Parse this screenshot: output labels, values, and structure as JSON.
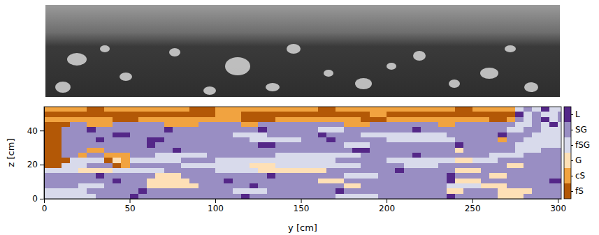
{
  "chart_data": {
    "type": "heatmap",
    "x_label": "y [cm]",
    "y_label": "z [cm]",
    "xlim": [
      0,
      302
    ],
    "ylim": [
      0,
      54
    ],
    "xticks": [
      0,
      50,
      100,
      150,
      200,
      250,
      300
    ],
    "yticks": [
      0,
      20,
      40
    ],
    "x_edges": [
      0,
      5,
      10,
      15,
      20,
      25,
      30,
      35,
      40,
      45,
      50,
      55,
      60,
      65,
      70,
      75,
      80,
      85,
      90,
      95,
      100,
      105,
      110,
      115,
      120,
      125,
      130,
      135,
      140,
      145,
      150,
      155,
      160,
      165,
      170,
      175,
      180,
      185,
      190,
      195,
      200,
      205,
      210,
      215,
      220,
      225,
      230,
      235,
      240,
      245,
      250,
      255,
      260,
      265,
      270,
      275,
      280,
      285,
      290,
      295,
      300,
      305
    ],
    "y_edges": [
      54,
      51,
      48,
      45,
      42,
      39,
      36,
      33,
      30,
      27,
      24,
      21,
      18,
      15,
      12,
      9,
      6,
      3,
      0
    ],
    "cells": [
      [
        1,
        1,
        1,
        1,
        1,
        0,
        0,
        1,
        1,
        1,
        1,
        1,
        1,
        1,
        1,
        1,
        1,
        0,
        0,
        0,
        1,
        1,
        1,
        1,
        1,
        1,
        1,
        1,
        1,
        1,
        1,
        1,
        0,
        0,
        1,
        1,
        1,
        1,
        1,
        1,
        1,
        1,
        1,
        1,
        1,
        1,
        1,
        1,
        0,
        0,
        1,
        1,
        1,
        1,
        1,
        3,
        4,
        3,
        5,
        3,
        3
      ],
      [
        0,
        0,
        0,
        0,
        0,
        0,
        0,
        0,
        0,
        0,
        0,
        0,
        0,
        0,
        0,
        0,
        0,
        0,
        0,
        0,
        1,
        1,
        1,
        0,
        0,
        0,
        0,
        0,
        0,
        0,
        0,
        0,
        0,
        0,
        0,
        0,
        0,
        0,
        1,
        1,
        0,
        0,
        0,
        0,
        0,
        0,
        0,
        0,
        0,
        0,
        0,
        0,
        0,
        0,
        0,
        5,
        3,
        4,
        3,
        3,
        4
      ],
      [
        1,
        1,
        1,
        1,
        1,
        1,
        1,
        1,
        0,
        0,
        0,
        1,
        1,
        1,
        1,
        1,
        1,
        1,
        1,
        1,
        1,
        1,
        1,
        0,
        0,
        0,
        0,
        1,
        1,
        1,
        1,
        1,
        1,
        1,
        1,
        1,
        1,
        0,
        0,
        0,
        1,
        1,
        1,
        1,
        1,
        1,
        1,
        1,
        1,
        1,
        1,
        1,
        0,
        0,
        1,
        4,
        3,
        4,
        5,
        3,
        4
      ],
      [
        0,
        0,
        0,
        4,
        4,
        1,
        1,
        1,
        4,
        4,
        4,
        4,
        4,
        4,
        1,
        1,
        1,
        1,
        4,
        4,
        4,
        4,
        4,
        1,
        1,
        4,
        4,
        4,
        4,
        4,
        4,
        4,
        4,
        4,
        4,
        1,
        1,
        1,
        4,
        4,
        4,
        4,
        4,
        4,
        4,
        4,
        1,
        1,
        4,
        4,
        4,
        4,
        4,
        4,
        4,
        3,
        3,
        4,
        3,
        5,
        3
      ],
      [
        0,
        0,
        4,
        4,
        4,
        5,
        4,
        4,
        4,
        4,
        4,
        4,
        4,
        4,
        5,
        4,
        4,
        4,
        4,
        4,
        4,
        4,
        4,
        4,
        4,
        5,
        4,
        4,
        4,
        4,
        4,
        4,
        3,
        3,
        3,
        4,
        4,
        4,
        4,
        4,
        4,
        4,
        4,
        5,
        4,
        4,
        4,
        4,
        4,
        4,
        4,
        4,
        4,
        4,
        3,
        3,
        4,
        4,
        3,
        3,
        3
      ],
      [
        0,
        0,
        4,
        4,
        4,
        4,
        4,
        4,
        5,
        5,
        4,
        4,
        4,
        4,
        4,
        4,
        4,
        4,
        4,
        4,
        4,
        4,
        3,
        3,
        3,
        3,
        4,
        4,
        4,
        4,
        4,
        4,
        5,
        4,
        4,
        4,
        4,
        3,
        3,
        3,
        3,
        3,
        3,
        3,
        3,
        3,
        3,
        4,
        4,
        4,
        4,
        4,
        4,
        5,
        4,
        4,
        4,
        3,
        3,
        3,
        3
      ],
      [
        0,
        0,
        4,
        4,
        4,
        4,
        5,
        4,
        4,
        4,
        4,
        4,
        5,
        5,
        4,
        4,
        4,
        4,
        4,
        4,
        4,
        4,
        4,
        4,
        3,
        3,
        3,
        3,
        3,
        3,
        4,
        4,
        4,
        5,
        4,
        4,
        4,
        4,
        4,
        4,
        3,
        3,
        3,
        3,
        3,
        3,
        3,
        3,
        4,
        4,
        4,
        4,
        4,
        1,
        4,
        4,
        3,
        3,
        3,
        3,
        3
      ],
      [
        0,
        0,
        4,
        4,
        4,
        4,
        4,
        4,
        4,
        4,
        4,
        4,
        5,
        4,
        4,
        4,
        4,
        4,
        4,
        4,
        4,
        4,
        4,
        4,
        4,
        5,
        5,
        4,
        4,
        4,
        4,
        4,
        4,
        4,
        4,
        3,
        3,
        3,
        4,
        4,
        4,
        4,
        4,
        4,
        4,
        4,
        4,
        4,
        5,
        4,
        4,
        4,
        4,
        4,
        4,
        3,
        3,
        3,
        3,
        3,
        3
      ],
      [
        0,
        0,
        4,
        4,
        4,
        1,
        1,
        4,
        4,
        4,
        4,
        4,
        4,
        4,
        4,
        5,
        4,
        4,
        4,
        4,
        4,
        4,
        4,
        4,
        4,
        4,
        4,
        4,
        4,
        4,
        4,
        4,
        4,
        4,
        4,
        4,
        5,
        5,
        4,
        4,
        4,
        4,
        4,
        4,
        4,
        4,
        4,
        4,
        2,
        4,
        4,
        4,
        4,
        4,
        4,
        3,
        3,
        3,
        4,
        4,
        4
      ],
      [
        0,
        0,
        4,
        4,
        1,
        4,
        4,
        1,
        1,
        1,
        4,
        4,
        4,
        3,
        3,
        3,
        3,
        3,
        3,
        4,
        4,
        4,
        4,
        4,
        4,
        4,
        4,
        3,
        3,
        3,
        3,
        3,
        3,
        3,
        3,
        3,
        3,
        4,
        4,
        4,
        4,
        4,
        4,
        5,
        4,
        4,
        4,
        4,
        4,
        4,
        4,
        4,
        3,
        3,
        3,
        3,
        4,
        4,
        4,
        4,
        4
      ],
      [
        0,
        0,
        0,
        3,
        3,
        3,
        3,
        0,
        2,
        1,
        3,
        3,
        3,
        3,
        3,
        3,
        4,
        4,
        4,
        4,
        3,
        3,
        3,
        3,
        3,
        3,
        3,
        3,
        3,
        3,
        3,
        3,
        3,
        3,
        4,
        4,
        4,
        4,
        4,
        4,
        3,
        3,
        3,
        3,
        3,
        3,
        3,
        3,
        2,
        2,
        3,
        3,
        3,
        4,
        4,
        4,
        4,
        4,
        4,
        4,
        4
      ],
      [
        0,
        0,
        3,
        3,
        3,
        4,
        4,
        4,
        0,
        1,
        4,
        4,
        4,
        4,
        4,
        4,
        3,
        3,
        3,
        3,
        3,
        3,
        3,
        3,
        2,
        2,
        2,
        3,
        3,
        3,
        3,
        3,
        3,
        3,
        3,
        3,
        3,
        4,
        4,
        4,
        4,
        4,
        3,
        3,
        3,
        3,
        4,
        4,
        4,
        4,
        4,
        4,
        4,
        4,
        2,
        2,
        4,
        4,
        4,
        4,
        4
      ],
      [
        3,
        3,
        3,
        3,
        2,
        2,
        2,
        2,
        3,
        3,
        3,
        3,
        3,
        3,
        4,
        4,
        4,
        4,
        4,
        4,
        3,
        3,
        3,
        3,
        3,
        2,
        2,
        2,
        2,
        2,
        2,
        2,
        2,
        4,
        4,
        4,
        4,
        4,
        4,
        4,
        4,
        5,
        4,
        4,
        4,
        4,
        4,
        4,
        2,
        2,
        2,
        4,
        4,
        4,
        4,
        4,
        4,
        4,
        4,
        4,
        4
      ],
      [
        4,
        4,
        4,
        4,
        4,
        4,
        5,
        4,
        4,
        4,
        4,
        4,
        4,
        2,
        2,
        2,
        4,
        4,
        4,
        4,
        4,
        4,
        4,
        4,
        4,
        4,
        5,
        4,
        4,
        4,
        4,
        4,
        4,
        4,
        4,
        3,
        3,
        3,
        3,
        4,
        4,
        4,
        4,
        4,
        4,
        4,
        4,
        5,
        4,
        4,
        4,
        4,
        2,
        2,
        4,
        4,
        4,
        4,
        4,
        4,
        4
      ],
      [
        4,
        4,
        4,
        4,
        4,
        4,
        4,
        4,
        5,
        4,
        4,
        4,
        2,
        2,
        2,
        2,
        2,
        4,
        4,
        4,
        4,
        5,
        4,
        4,
        4,
        4,
        4,
        4,
        4,
        4,
        4,
        4,
        2,
        2,
        2,
        4,
        4,
        4,
        4,
        4,
        4,
        4,
        4,
        4,
        4,
        4,
        4,
        5,
        2,
        2,
        2,
        4,
        4,
        4,
        4,
        4,
        4,
        4,
        4,
        5,
        5
      ],
      [
        4,
        4,
        4,
        4,
        3,
        3,
        3,
        4,
        4,
        4,
        4,
        4,
        2,
        2,
        2,
        2,
        2,
        2,
        4,
        4,
        4,
        4,
        4,
        4,
        5,
        4,
        4,
        4,
        4,
        4,
        4,
        4,
        4,
        4,
        4,
        2,
        2,
        4,
        4,
        4,
        4,
        4,
        4,
        4,
        4,
        4,
        4,
        3,
        3,
        3,
        3,
        2,
        2,
        2,
        4,
        4,
        4,
        4,
        4,
        4,
        4
      ],
      [
        3,
        3,
        3,
        3,
        3,
        4,
        4,
        4,
        4,
        4,
        4,
        5,
        4,
        4,
        4,
        4,
        4,
        4,
        4,
        4,
        4,
        4,
        3,
        3,
        3,
        3,
        4,
        4,
        4,
        4,
        4,
        4,
        4,
        4,
        5,
        4,
        4,
        4,
        4,
        4,
        4,
        4,
        4,
        4,
        4,
        4,
        4,
        2,
        2,
        4,
        4,
        4,
        4,
        2,
        2,
        2,
        2,
        4,
        4,
        4,
        4
      ],
      [
        3,
        3,
        3,
        3,
        3,
        3,
        4,
        4,
        4,
        4,
        5,
        4,
        4,
        4,
        4,
        4,
        4,
        4,
        4,
        4,
        4,
        4,
        4,
        5,
        4,
        4,
        4,
        4,
        4,
        4,
        4,
        4,
        4,
        4,
        3,
        3,
        3,
        3,
        3,
        4,
        4,
        4,
        4,
        4,
        4,
        4,
        4,
        5,
        4,
        4,
        4,
        4,
        4,
        2,
        2,
        2,
        4,
        4,
        4,
        4,
        4
      ]
    ],
    "colorbar": {
      "range": [
        -0.5,
        5.5
      ],
      "ticks": [
        {
          "value": 0,
          "label": "fS"
        },
        {
          "value": 1,
          "label": "cS"
        },
        {
          "value": 2,
          "label": "G"
        },
        {
          "value": 3,
          "label": "fSG"
        },
        {
          "value": 4,
          "label": "SG"
        },
        {
          "value": 5,
          "label": "L"
        }
      ],
      "colors": [
        "#b35806",
        "#f1a340",
        "#fee0b6",
        "#d8daeb",
        "#998ec3",
        "#542788"
      ]
    }
  }
}
